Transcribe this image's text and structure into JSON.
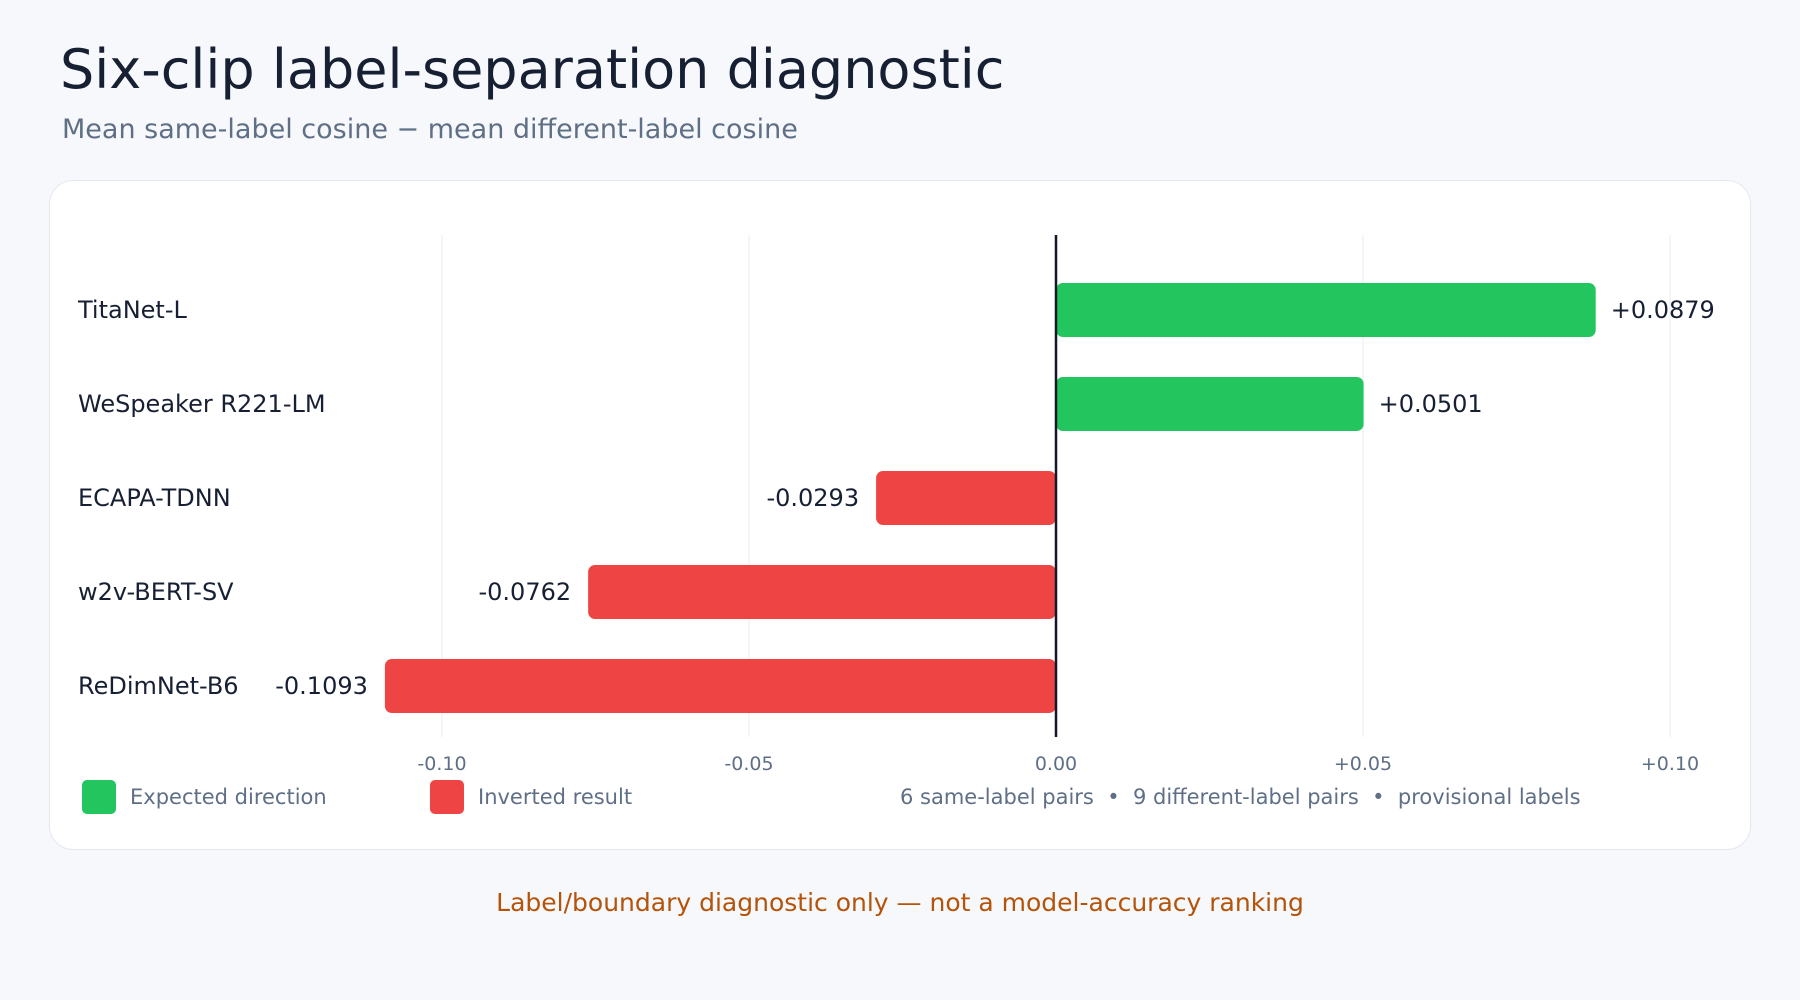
{
  "title": "Six-clip label-separation diagnostic",
  "subtitle": "Mean same-label cosine − mean different-label cosine",
  "legend": {
    "expected_label": "Expected direction",
    "inverted_label": "Inverted result",
    "expected_color": "#22c55e",
    "inverted_color": "#ef4444"
  },
  "footnote": "6 same-label pairs  •  9 different-label pairs  •  provisional labels",
  "disclaimer": "Label/boundary diagnostic only — not a model-accuracy ranking",
  "chart_data": {
    "type": "bar",
    "orientation": "horizontal",
    "categories": [
      "TitaNet-L",
      "WeSpeaker R221-LM",
      "ECAPA-TDNN",
      "w2v-BERT-SV",
      "ReDimNet-B6"
    ],
    "values": [
      0.0879,
      0.0501,
      -0.0293,
      -0.0762,
      -0.1093
    ],
    "value_labels": [
      "+0.0879",
      "+0.0501",
      "-0.0293",
      "-0.0762",
      "-0.1093"
    ],
    "xlim": [
      -0.12,
      0.1
    ],
    "xticks": [
      -0.1,
      -0.05,
      0.0,
      0.05,
      0.1
    ],
    "xtick_labels": [
      "-0.10",
      "-0.05",
      "0.00",
      "+0.05",
      "+0.10"
    ],
    "grid": "vertical",
    "zero_line": true,
    "positive_color": "#22c55e",
    "negative_color": "#ef4444"
  }
}
